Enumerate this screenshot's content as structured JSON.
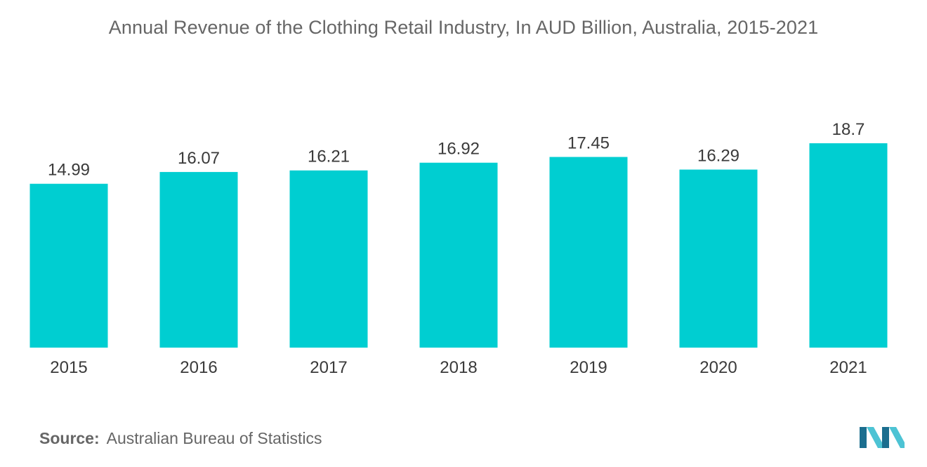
{
  "chart_data": {
    "type": "bar",
    "title": "Annual Revenue of the Clothing Retail Industry, In AUD Billion, Australia, 2015-2021",
    "xlabel": "",
    "ylabel": "",
    "categories": [
      "2015",
      "2016",
      "2017",
      "2018",
      "2019",
      "2020",
      "2021"
    ],
    "values": [
      14.99,
      16.07,
      16.21,
      16.92,
      17.45,
      16.29,
      18.7
    ],
    "value_labels": [
      "14.99",
      "16.07",
      "16.21",
      "16.92",
      "17.45",
      "16.29",
      "18.7"
    ],
    "ylim": [
      0,
      18.7
    ],
    "grid": false,
    "legend": "none",
    "bar_color": "#00CED1"
  },
  "source": {
    "label": "Source:",
    "text": "Australian Bureau of Statistics"
  },
  "logo": {
    "icon": "mordor-intelligence-logo-icon",
    "colors": [
      "#1B6E8F",
      "#4DC3D4"
    ]
  }
}
